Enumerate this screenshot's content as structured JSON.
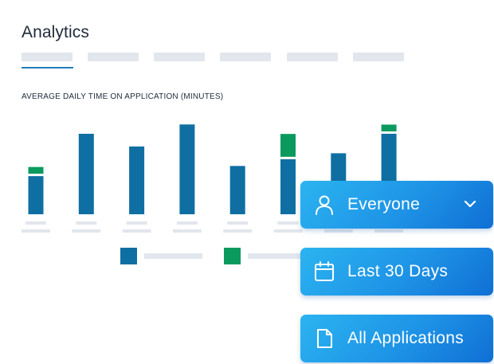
{
  "page": {
    "title": "Analytics"
  },
  "tabs": {
    "count": 6,
    "active_index": 0
  },
  "chart_data": {
    "type": "bar",
    "title": "AVERAGE DAILY TIME ON APPLICATION (MINUTES)",
    "stacked": true,
    "categories": [
      "",
      "",
      "",
      "",
      "",
      "",
      "",
      ""
    ],
    "series": [
      {
        "color": "#0f6fa3",
        "values": [
          45,
          95,
          80,
          106,
          57,
          65,
          72,
          95
        ]
      },
      {
        "color": "#0a9a5e",
        "values": [
          8,
          0,
          0,
          0,
          0,
          27,
          0,
          8
        ]
      }
    ],
    "ylim": [
      0,
      110
    ],
    "legend": "bottom-center",
    "grid": false
  },
  "filters": [
    {
      "label": "Everyone",
      "icon": "person-icon",
      "has_dropdown": true
    },
    {
      "label": "Last 30 Days",
      "icon": "calendar-icon",
      "has_dropdown": false
    },
    {
      "label": "All Applications",
      "icon": "document-icon",
      "has_dropdown": false
    }
  ]
}
